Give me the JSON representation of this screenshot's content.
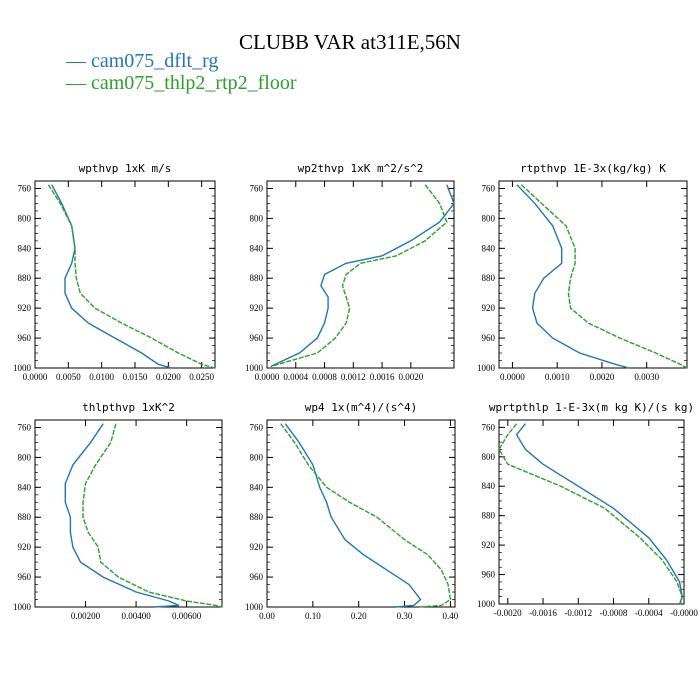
{
  "title": "CLUBB VAR at311E,56N",
  "colors": {
    "series1": "#1f77b4",
    "series2": "#2ca02c"
  },
  "legend": [
    {
      "label": "— cam075_dflt_rg",
      "color": "#1f77b4"
    },
    {
      "label": "— cam075_thlp2_rtp2_floor",
      "color": "#2ca02c"
    }
  ],
  "chart_data": [
    {
      "type": "line",
      "title": "wpthvp  1xK m/s",
      "xlim": [
        0,
        0.027
      ],
      "ylim": [
        1000,
        750
      ],
      "yticks": [
        "760",
        "800",
        "840",
        "880",
        "920",
        "960",
        "1000"
      ],
      "xticks": [
        {
          "v": 0,
          "t": "0.0000"
        },
        {
          "v": 0.005,
          "t": "0.0050"
        },
        {
          "v": 0.01,
          "t": "0.0100"
        },
        {
          "v": 0.015,
          "t": "0.0150"
        },
        {
          "v": 0.02,
          "t": "0.0200"
        },
        {
          "v": 0.025,
          "t": "0.0250"
        }
      ],
      "series": [
        {
          "name": "cam075_dflt_rg",
          "x": [
            0.0025,
            0.004,
            0.0055,
            0.006,
            0.0055,
            0.0045,
            0.0045,
            0.0055,
            0.008,
            0.012,
            0.016,
            0.0185,
            0.0205
          ],
          "y": [
            755,
            780,
            810,
            840,
            860,
            880,
            900,
            920,
            940,
            960,
            980,
            995,
            1000
          ]
        },
        {
          "name": "cam075_thlp2_rtp2_floor",
          "x": [
            0.002,
            0.0038,
            0.0055,
            0.006,
            0.006,
            0.0062,
            0.0068,
            0.009,
            0.013,
            0.0175,
            0.0215,
            0.025,
            0.027
          ],
          "y": [
            755,
            780,
            810,
            840,
            860,
            880,
            900,
            920,
            940,
            960,
            980,
            995,
            1000
          ]
        }
      ]
    },
    {
      "type": "line",
      "title": "wp2thvp  1xK m^2/s^2",
      "xlim": [
        0,
        0.0026
      ],
      "ylim": [
        1000,
        750
      ],
      "yticks": [
        "760",
        "800",
        "840",
        "880",
        "920",
        "960",
        "1000"
      ],
      "xticks": [
        {
          "v": 0,
          "t": "0.0000"
        },
        {
          "v": 0.0004,
          "t": "0.0004"
        },
        {
          "v": 0.0008,
          "t": "0.0008"
        },
        {
          "v": 0.0012,
          "t": "0.0012"
        },
        {
          "v": 0.0016,
          "t": "0.0016"
        },
        {
          "v": 0.002,
          "t": "0.0020"
        }
      ],
      "series": [
        {
          "name": "cam075_dflt_rg",
          "x": [
            0.0025,
            0.0026,
            0.0024,
            0.002,
            0.0016,
            0.0011,
            0.0008,
            0.00075,
            0.00085,
            0.00085,
            0.0008,
            0.0007,
            0.00045,
            5e-05
          ],
          "y": [
            755,
            780,
            805,
            830,
            850,
            860,
            875,
            890,
            905,
            920,
            940,
            960,
            980,
            998
          ]
        },
        {
          "name": "cam075_thlp2_rtp2_floor",
          "x": [
            0.0022,
            0.0024,
            0.0025,
            0.0022,
            0.0018,
            0.0013,
            0.0011,
            0.00105,
            0.0011,
            0.00115,
            0.0011,
            0.00095,
            0.0007,
            5e-05
          ],
          "y": [
            755,
            780,
            805,
            830,
            850,
            860,
            875,
            890,
            905,
            920,
            940,
            960,
            980,
            998
          ]
        }
      ]
    },
    {
      "type": "line",
      "title": "rtpthvp  1E-3x(kg/kg) K",
      "xlim": [
        -0.0003,
        0.0039
      ],
      "ylim": [
        1000,
        750
      ],
      "yticks": [
        "760",
        "800",
        "840",
        "880",
        "920",
        "960",
        "1000"
      ],
      "xticks": [
        {
          "v": 0,
          "t": "0.0000"
        },
        {
          "v": 0.001,
          "t": "0.0010"
        },
        {
          "v": 0.002,
          "t": "0.0020"
        },
        {
          "v": 0.003,
          "t": "0.0030"
        }
      ],
      "series": [
        {
          "name": "cam075_dflt_rg",
          "x": [
            0.0001,
            0.0005,
            0.0009,
            0.0011,
            0.0011,
            0.0007,
            0.0005,
            0.00045,
            0.00055,
            0.0009,
            0.0015,
            0.0023,
            0.0026
          ],
          "y": [
            755,
            780,
            810,
            840,
            860,
            880,
            900,
            920,
            940,
            960,
            980,
            995,
            1000
          ]
        },
        {
          "name": "cam075_thlp2_rtp2_floor",
          "x": [
            0.0002,
            0.00065,
            0.0012,
            0.0014,
            0.0014,
            0.0013,
            0.00125,
            0.0013,
            0.0017,
            0.0024,
            0.0032,
            0.00375,
            0.00395
          ],
          "y": [
            755,
            780,
            810,
            840,
            860,
            880,
            900,
            920,
            940,
            960,
            980,
            995,
            1000
          ]
        }
      ]
    },
    {
      "type": "line",
      "title": "thlpthvp  1xK^2",
      "xlim": [
        0,
        0.0074
      ],
      "ylim": [
        1000,
        750
      ],
      "yticks": [
        "760",
        "800",
        "840",
        "880",
        "920",
        "960",
        "1000"
      ],
      "xticks": [
        {
          "v": 0.002,
          "t": "0.00200"
        },
        {
          "v": 0.004,
          "t": "0.00400"
        },
        {
          "v": 0.006,
          "t": "0.00600"
        }
      ],
      "series": [
        {
          "name": "cam075_dflt_rg",
          "x": [
            0.0027,
            0.0022,
            0.0015,
            0.0012,
            0.0012,
            0.0014,
            0.0014,
            0.0015,
            0.0018,
            0.0027,
            0.004,
            0.0053,
            0.0057,
            0.0047
          ],
          "y": [
            755,
            780,
            810,
            835,
            860,
            880,
            900,
            920,
            940,
            960,
            980,
            992,
            998,
            1000
          ]
        },
        {
          "name": "cam075_thlp2_rtp2_floor",
          "x": [
            0.0032,
            0.003,
            0.0024,
            0.002,
            0.0019,
            0.0019,
            0.0021,
            0.0025,
            0.0026,
            0.0033,
            0.0045,
            0.006,
            0.0072,
            0.0074
          ],
          "y": [
            755,
            780,
            810,
            835,
            860,
            880,
            900,
            920,
            940,
            960,
            980,
            992,
            998,
            1000
          ]
        }
      ]
    },
    {
      "type": "line",
      "title": "wp4  1x(m^4)/(s^4)",
      "xlim": [
        0,
        0.41
      ],
      "ylim": [
        1000,
        750
      ],
      "yticks": [
        "760",
        "800",
        "840",
        "880",
        "920",
        "960",
        "1000"
      ],
      "xticks": [
        {
          "v": 0,
          "t": "0.00"
        },
        {
          "v": 0.1,
          "t": "0.10"
        },
        {
          "v": 0.2,
          "t": "0.20"
        },
        {
          "v": 0.3,
          "t": "0.30"
        },
        {
          "v": 0.4,
          "t": "0.40"
        }
      ],
      "series": [
        {
          "name": "cam075_dflt_rg",
          "x": [
            0.04,
            0.07,
            0.1,
            0.115,
            0.13,
            0.14,
            0.17,
            0.21,
            0.26,
            0.31,
            0.335,
            0.32,
            0.28
          ],
          "y": [
            755,
            780,
            810,
            840,
            860,
            880,
            910,
            930,
            950,
            970,
            990,
            998,
            1000
          ]
        },
        {
          "name": "cam075_thlp2_rtp2_floor",
          "x": [
            0.03,
            0.06,
            0.09,
            0.13,
            0.18,
            0.24,
            0.3,
            0.35,
            0.38,
            0.395,
            0.4,
            0.38,
            0.33
          ],
          "y": [
            755,
            780,
            810,
            840,
            860,
            880,
            910,
            930,
            950,
            970,
            990,
            998,
            1000
          ]
        }
      ]
    },
    {
      "type": "line",
      "title": "wprtpthlp  1-E-3x(m kg K)/(s kg)",
      "xlim": [
        -0.0021,
        0
      ],
      "ylim": [
        1000,
        750
      ],
      "yticks": [
        "760",
        "800",
        "840",
        "880",
        "920",
        "960",
        "1000"
      ],
      "xticks": [
        {
          "v": -0.002,
          "t": "-0.0020"
        },
        {
          "v": -0.0016,
          "t": "-0.0016"
        },
        {
          "v": -0.0012,
          "t": "-0.0012"
        },
        {
          "v": -0.0008,
          "t": "-0.0008"
        },
        {
          "v": -0.0004,
          "t": "-0.0004"
        },
        {
          "v": 0,
          "t": "-0.0000"
        }
      ],
      "series": [
        {
          "name": "cam075_dflt_rg",
          "x": [
            -0.0018,
            -0.0019,
            -0.0018,
            -0.0016,
            -0.0012,
            -0.0008,
            -0.0004,
            -0.0002,
            -5e-05,
            -2e-05,
            -5e-05
          ],
          "y": [
            755,
            770,
            790,
            810,
            840,
            870,
            910,
            940,
            970,
            990,
            1000
          ]
        },
        {
          "name": "cam075_thlp2_rtp2_floor",
          "x": [
            -0.0019,
            -0.002,
            -0.0021,
            -0.002,
            -0.0014,
            -0.0009,
            -0.0005,
            -0.00025,
            -8e-05,
            -2e-05,
            -4e-05
          ],
          "y": [
            755,
            770,
            790,
            810,
            840,
            870,
            910,
            940,
            970,
            990,
            1000
          ]
        }
      ]
    }
  ]
}
